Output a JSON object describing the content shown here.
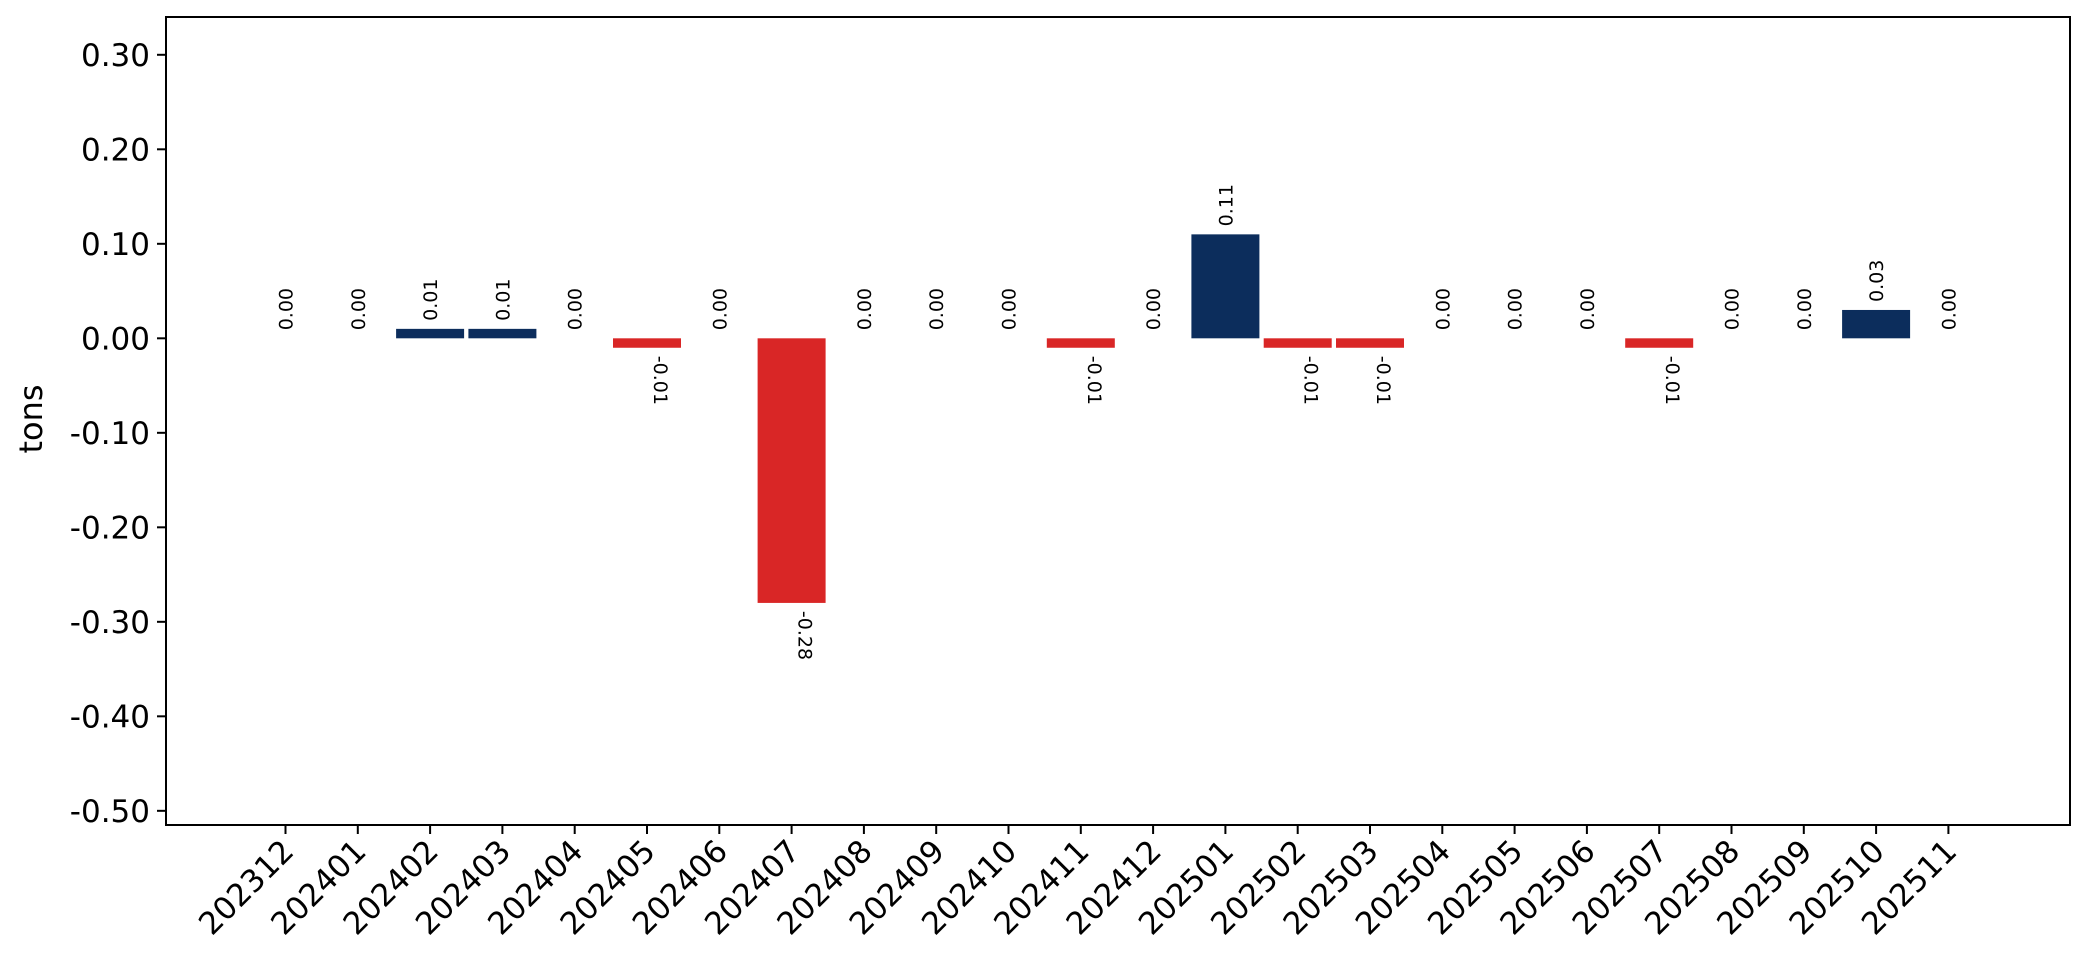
{
  "chart_data": {
    "type": "bar",
    "title": "",
    "xlabel": "",
    "ylabel": "tons",
    "ylim": [
      -0.515,
      0.34
    ],
    "y_ticks": [
      0.3,
      0.2,
      0.1,
      0.0,
      -0.1,
      -0.2,
      -0.3,
      -0.4,
      -0.5
    ],
    "y_tick_labels": [
      "0.30",
      "0.20",
      "0.10",
      "0.00",
      "-0.10",
      "-0.20",
      "-0.30",
      "-0.40",
      "-0.50"
    ],
    "grid": false,
    "legend": "none",
    "categories": [
      "202312",
      "202401",
      "202402",
      "202403",
      "202404",
      "202405",
      "202406",
      "202407",
      "202408",
      "202409",
      "202410",
      "202411",
      "202412",
      "202501",
      "202502",
      "202503",
      "202504",
      "202505",
      "202506",
      "202507",
      "202508",
      "202509",
      "202510",
      "202511"
    ],
    "values": [
      0.0,
      0.0,
      0.01,
      0.01,
      0.0,
      -0.01,
      0.0,
      -0.28,
      0.0,
      0.0,
      0.0,
      -0.01,
      0.0,
      0.11,
      -0.01,
      -0.01,
      0.0,
      0.0,
      0.0,
      -0.01,
      0.0,
      0.0,
      0.03,
      0.0
    ],
    "value_labels": [
      "0.00",
      "0.00",
      "0.01",
      "0.01",
      "0.00",
      "-0.01",
      "0.00",
      "-0.28",
      "0.00",
      "0.00",
      "0.00",
      "-0.01",
      "0.00",
      "0.11",
      "-0.01",
      "-0.01",
      "0.00",
      "0.00",
      "0.00",
      "-0.01",
      "0.00",
      "0.00",
      "0.03",
      "0.00"
    ],
    "colors": {
      "positive": "#0c2d5c",
      "negative": "#d92626"
    }
  }
}
